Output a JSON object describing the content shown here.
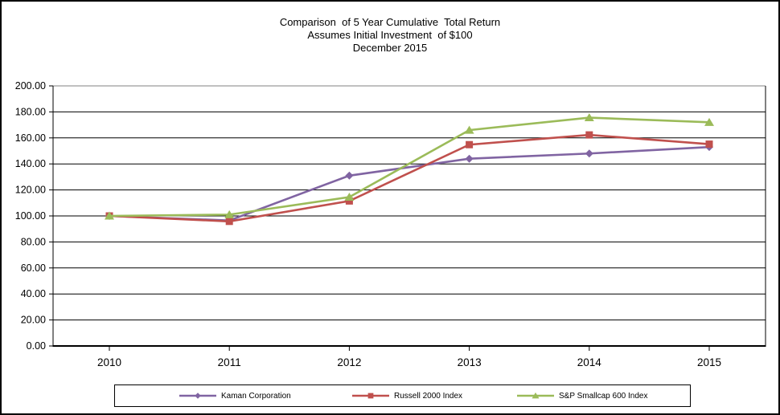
{
  "window": {
    "background_color": "#FFFFFF",
    "border_color": "#000000"
  },
  "chart_data": {
    "type": "line",
    "title_lines": [
      "Comparison  of 5 Year Cumulative  Total Return",
      "Assumes Initial Investment  of $100",
      "December 2015"
    ],
    "categories": [
      "2010",
      "2011",
      "2012",
      "2013",
      "2014",
      "2015"
    ],
    "series": [
      {
        "name": "Kaman Corporation",
        "color": "#8064A2",
        "marker": "diamond",
        "values": [
          100.0,
          96.5,
          131.0,
          144.0,
          148.0,
          153.0
        ]
      },
      {
        "name": "Russell 2000 Index",
        "color": "#C0504D",
        "marker": "square",
        "values": [
          100.0,
          95.8,
          111.5,
          154.8,
          162.3,
          155.2
        ]
      },
      {
        "name": "S&P Smallcap 600 Index",
        "color": "#9BBB59",
        "marker": "triangle",
        "values": [
          100.0,
          101.0,
          114.5,
          166.0,
          175.6,
          172.0
        ]
      }
    ],
    "xlabel": "",
    "ylabel": "",
    "ylim": [
      0,
      200
    ],
    "y_tick_step": 20,
    "y_tick_labels": [
      "200.00",
      "180.00",
      "160.00",
      "140.00",
      "120.00",
      "100.00",
      "80.00",
      "60.00",
      "40.00",
      "20.00",
      "0.00"
    ],
    "grid": "horizontal",
    "gridline_color": "#000000",
    "plot_top_border_color": "#808080",
    "axis_color": "#000000",
    "legend_position": "bottom"
  }
}
